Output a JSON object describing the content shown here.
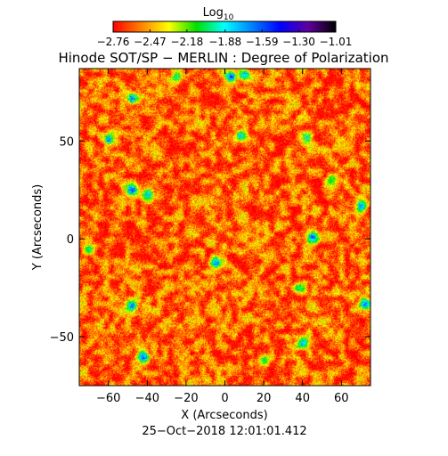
{
  "chart_data": {
    "type": "heatmap",
    "title": "Hinode SOT/SP − MERLIN : Degree of Polarization",
    "xlabel": "X (Arcseconds)",
    "ylabel": "Y (Arcseconds)",
    "timestamp": "25−Oct−2018 12:01:01.412",
    "xlim": [
      -75,
      75
    ],
    "ylim": [
      -75,
      87
    ],
    "x_ticks": [
      -60,
      -40,
      -20,
      0,
      20,
      40,
      60
    ],
    "x_tick_labels": [
      "−60",
      "−40",
      "−20",
      "0",
      "20",
      "40",
      "60"
    ],
    "y_ticks": [
      -50,
      0,
      50
    ],
    "y_tick_labels": [
      "−50",
      "0",
      "50"
    ],
    "colorbar": {
      "label_main": "Log",
      "label_sub": "10",
      "scale": "log10",
      "range": [
        -2.76,
        -1.01
      ],
      "ticks": [
        -2.76,
        -2.47,
        -2.18,
        -1.88,
        -1.59,
        -1.3,
        -1.01
      ],
      "tick_labels": [
        "−2.76",
        "−2.47",
        "−2.18",
        "−1.88",
        "−1.59",
        "−1.30",
        "−1.01"
      ],
      "colors": [
        "#ff0000",
        "#ff8000",
        "#ffff00",
        "#00e000",
        "#00ffff",
        "#0080ff",
        "#0000ff",
        "#6000a0",
        "#000000"
      ]
    },
    "background_value": -2.6,
    "hotspots": [
      {
        "x": -48,
        "y": 72,
        "value": -1.55
      },
      {
        "x": -60,
        "y": 51,
        "value": -1.62
      },
      {
        "x": -48,
        "y": 25,
        "value": -1.45
      },
      {
        "x": -40,
        "y": 23,
        "value": -1.75
      },
      {
        "x": -25,
        "y": 83,
        "value": -1.9
      },
      {
        "x": 3,
        "y": 83,
        "value": -1.45
      },
      {
        "x": 10,
        "y": 84,
        "value": -1.7
      },
      {
        "x": 8,
        "y": 53,
        "value": -1.8
      },
      {
        "x": 42,
        "y": 52,
        "value": -1.8
      },
      {
        "x": 45,
        "y": 1,
        "value": -1.5
      },
      {
        "x": 70,
        "y": 17,
        "value": -1.6
      },
      {
        "x": -5,
        "y": -12,
        "value": -1.55
      },
      {
        "x": -48,
        "y": -34,
        "value": -1.55
      },
      {
        "x": 72,
        "y": -33,
        "value": -1.55
      },
      {
        "x": -42,
        "y": -60,
        "value": -1.45
      },
      {
        "x": 40,
        "y": -53,
        "value": -1.7
      },
      {
        "x": 38,
        "y": -25,
        "value": -1.9
      },
      {
        "x": -70,
        "y": -5,
        "value": -1.95
      },
      {
        "x": 20,
        "y": -62,
        "value": -2.0
      },
      {
        "x": 55,
        "y": 30,
        "value": -2.0
      }
    ]
  }
}
